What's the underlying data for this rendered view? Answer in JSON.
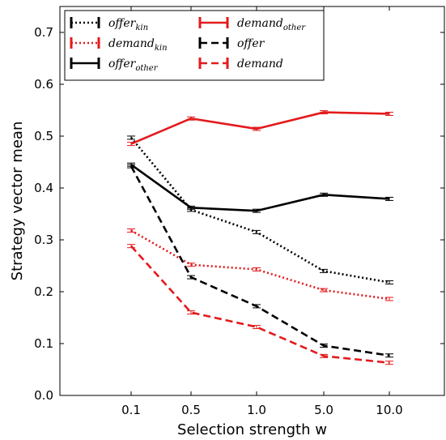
{
  "chart_data": {
    "type": "line",
    "xlabel": "Selection strength w",
    "ylabel": "Strategy vector mean",
    "categories": [
      "0.1",
      "0.5",
      "1.0",
      "5.0",
      "10.0"
    ],
    "ylim": [
      0.0,
      0.75
    ],
    "yticks": [
      "0.0",
      "0.1",
      "0.2",
      "0.3",
      "0.4",
      "0.5",
      "0.6",
      "0.7"
    ],
    "grid": false,
    "legend_position": "top-left",
    "series": [
      {
        "name": "offer",
        "sub": "kin",
        "color": "#000000",
        "style": "dotted",
        "values": [
          0.497,
          0.358,
          0.315,
          0.24,
          0.218
        ]
      },
      {
        "name": "demand",
        "sub": "kin",
        "color": "#e31a1c",
        "style": "dotted",
        "values": [
          0.318,
          0.252,
          0.243,
          0.203,
          0.186
        ]
      },
      {
        "name": "offer",
        "sub": "other",
        "color": "#000000",
        "style": "solid",
        "values": [
          0.445,
          0.362,
          0.356,
          0.387,
          0.379
        ]
      },
      {
        "name": "demand",
        "sub": "other",
        "color": "#e31a1c",
        "style": "solid",
        "values": [
          0.485,
          0.534,
          0.514,
          0.546,
          0.543
        ]
      },
      {
        "name": "offer",
        "sub": "",
        "color": "#000000",
        "style": "dashed",
        "values": [
          0.442,
          0.228,
          0.172,
          0.096,
          0.077
        ]
      },
      {
        "name": "demand",
        "sub": "",
        "color": "#e31a1c",
        "style": "dashed",
        "values": [
          0.288,
          0.16,
          0.132,
          0.076,
          0.063
        ]
      }
    ]
  }
}
